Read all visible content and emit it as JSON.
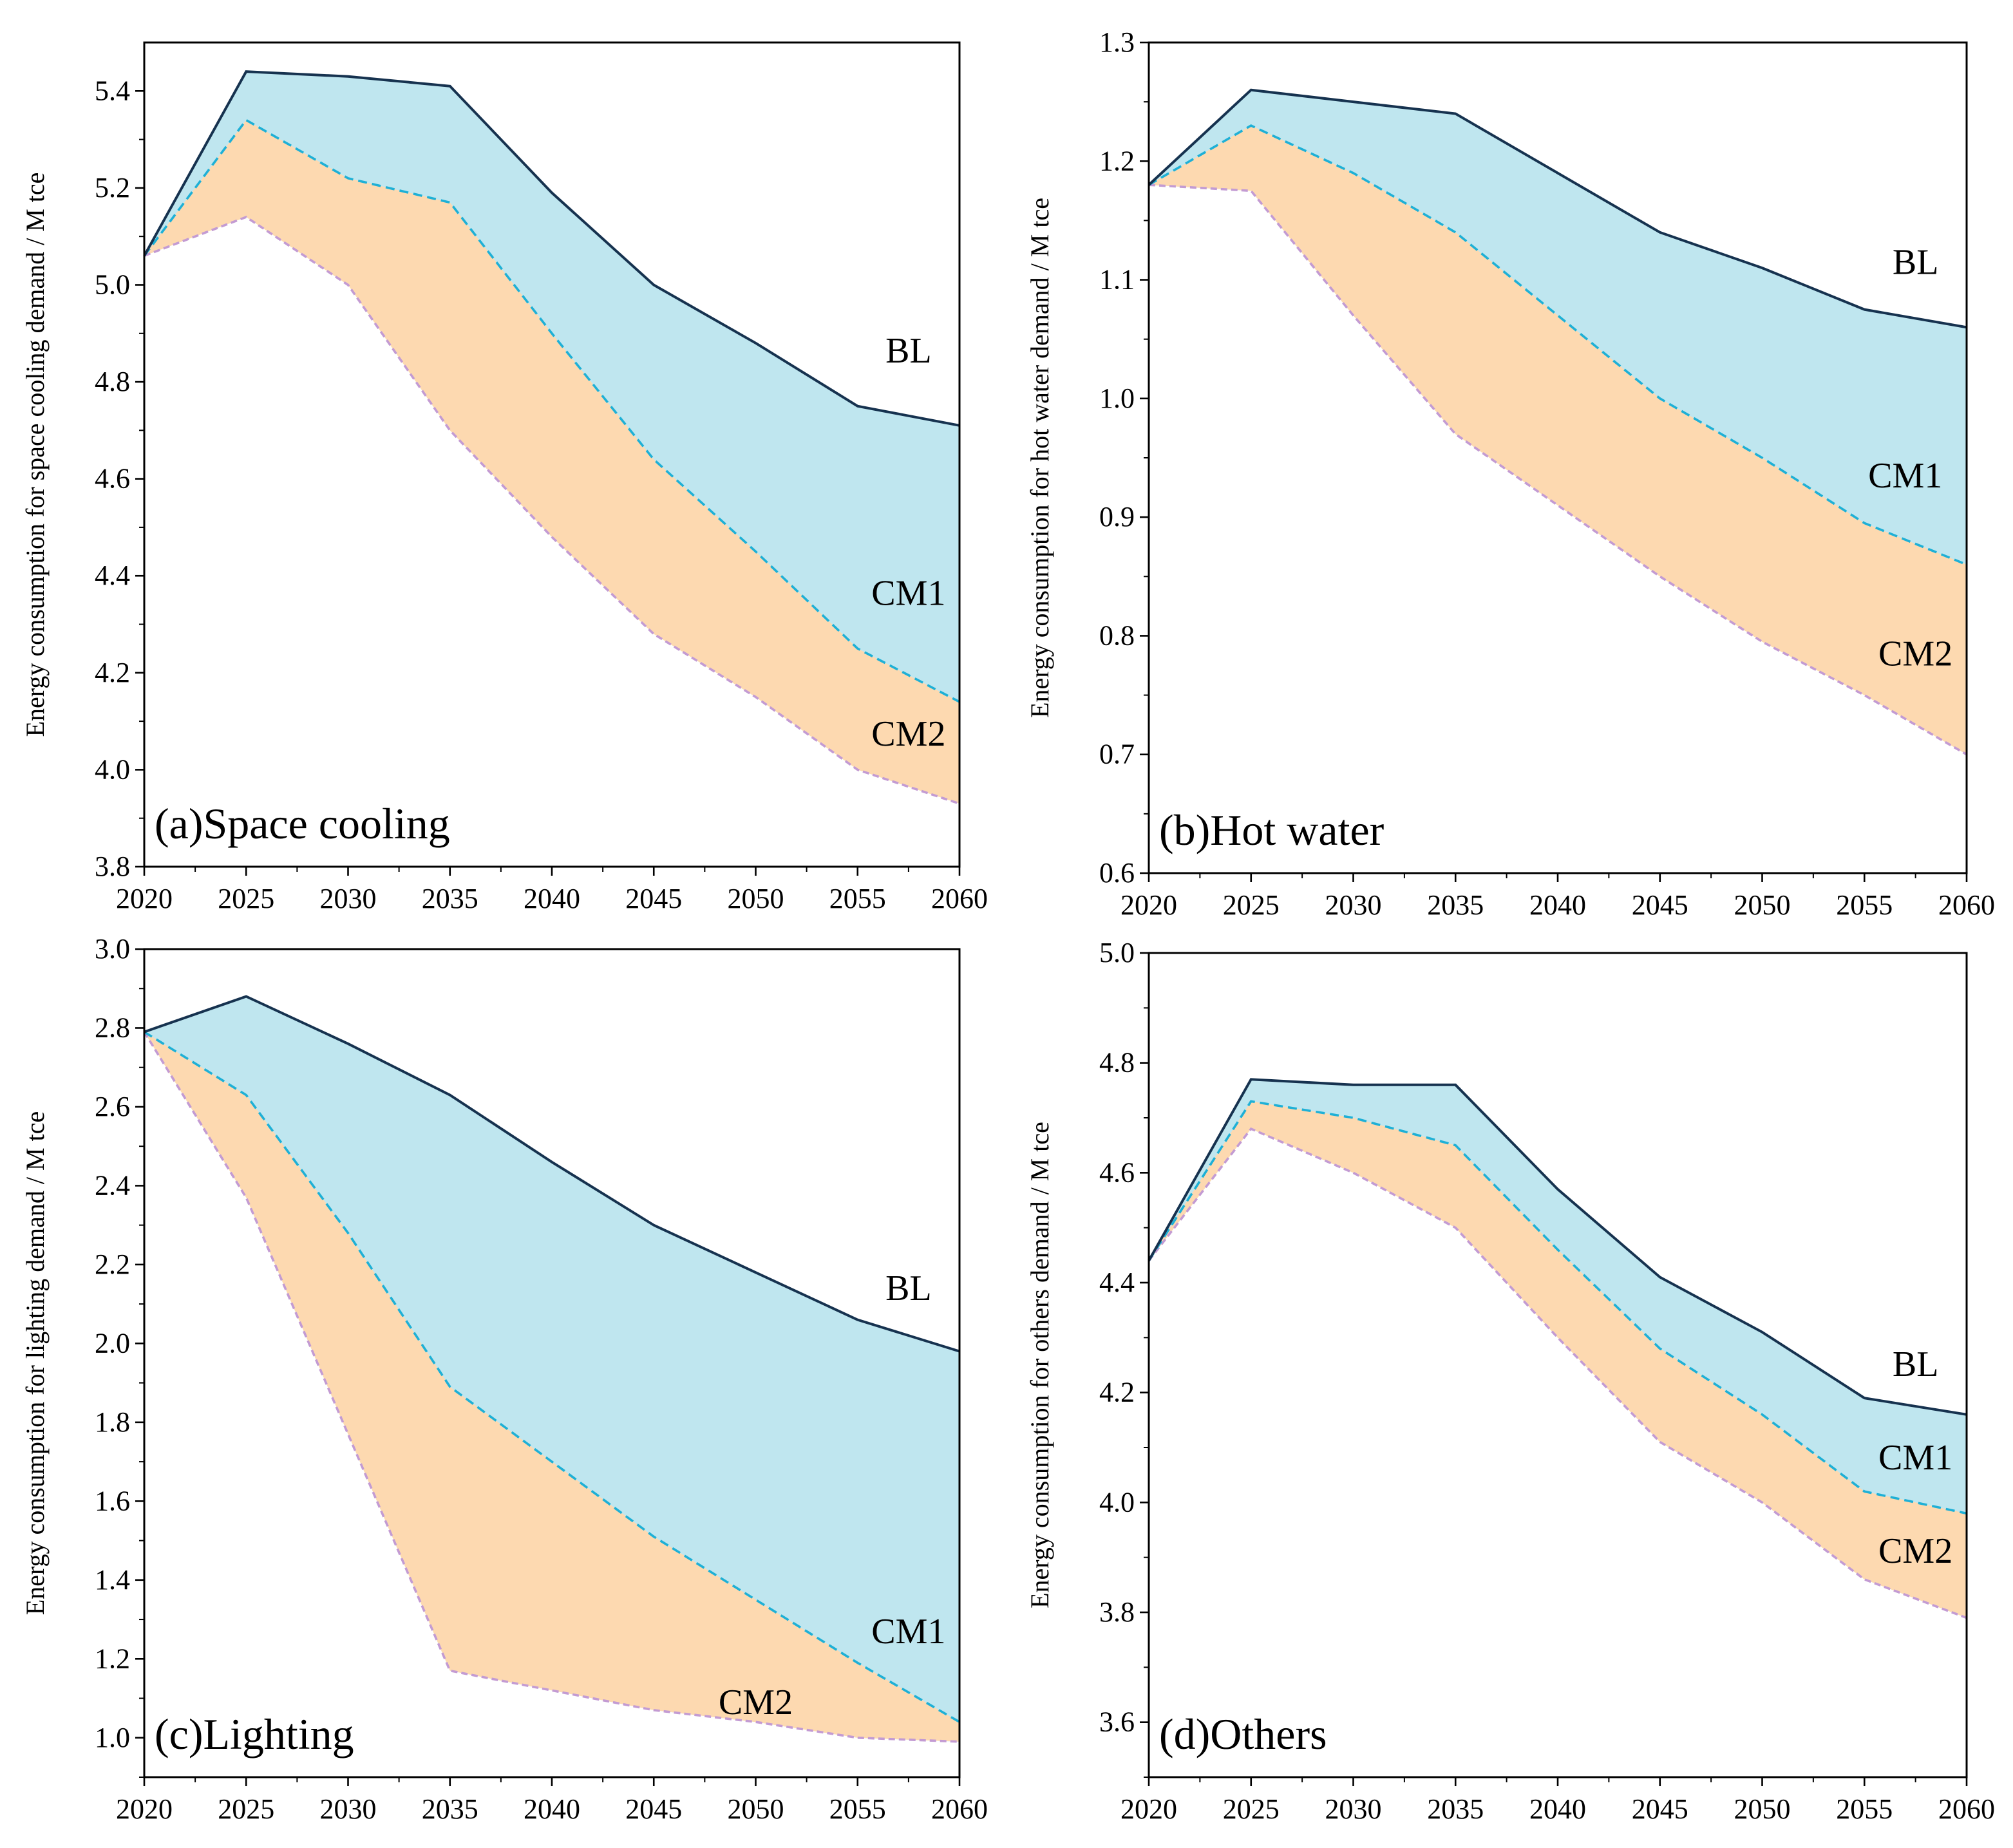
{
  "colors": {
    "bl_line": "#16324f",
    "cm1_line": "#1eb0d6",
    "cm2_line": "#c39bd3",
    "blue_fill": "#bfe6ef",
    "orange_fill": "#fdd9b0"
  },
  "chart_data": [
    {
      "type": "area",
      "panel_title": "(a)Space cooling",
      "ylabel": "Energy consumption for space cooling demand / M tce",
      "x": [
        2020,
        2025,
        2030,
        2035,
        2040,
        2045,
        2050,
        2055,
        2060
      ],
      "xticks": [
        "2020",
        "2025",
        "2030",
        "2035",
        "2040",
        "2045",
        "2050",
        "2055",
        "2060"
      ],
      "ylim": [
        3.8,
        5.5
      ],
      "yticks": [
        "3.8",
        "4.0",
        "4.2",
        "4.4",
        "4.6",
        "4.8",
        "5.0",
        "5.2",
        "5.4"
      ],
      "series": [
        {
          "name": "BL",
          "values": [
            5.06,
            5.44,
            5.43,
            5.41,
            5.19,
            5.0,
            4.88,
            4.75,
            4.71
          ],
          "label_pos": [
            2057.5,
            4.84
          ]
        },
        {
          "name": "CM1",
          "values": [
            5.06,
            5.34,
            5.22,
            5.17,
            4.9,
            4.64,
            4.45,
            4.25,
            4.14
          ],
          "label_pos": [
            2057.5,
            4.34
          ]
        },
        {
          "name": "CM2",
          "values": [
            5.06,
            5.14,
            5.0,
            4.7,
            4.48,
            4.28,
            4.15,
            4.0,
            3.93
          ],
          "label_pos": [
            2057.5,
            4.05
          ]
        }
      ]
    },
    {
      "type": "area",
      "panel_title": "(b)Hot water",
      "ylabel": "Energy consumption for hot water demand / M tce",
      "x": [
        2020,
        2025,
        2030,
        2035,
        2040,
        2045,
        2050,
        2055,
        2060
      ],
      "xticks": [
        "2020",
        "2025",
        "2030",
        "2035",
        "2040",
        "2045",
        "2050",
        "2055",
        "2060"
      ],
      "ylim": [
        0.6,
        1.3
      ],
      "yticks": [
        "0.6",
        "0.7",
        "0.8",
        "0.9",
        "1.0",
        "1.1",
        "1.2",
        "1.3"
      ],
      "series": [
        {
          "name": "BL",
          "values": [
            1.18,
            1.26,
            1.25,
            1.24,
            1.19,
            1.14,
            1.11,
            1.075,
            1.06
          ],
          "label_pos": [
            2057.5,
            1.105
          ]
        },
        {
          "name": "CM1",
          "values": [
            1.18,
            1.23,
            1.19,
            1.14,
            1.07,
            1.0,
            0.95,
            0.895,
            0.86
          ],
          "label_pos": [
            2057,
            0.925
          ]
        },
        {
          "name": "CM2",
          "values": [
            1.18,
            1.175,
            1.07,
            0.97,
            0.91,
            0.85,
            0.795,
            0.75,
            0.7
          ],
          "label_pos": [
            2057.5,
            0.775
          ]
        }
      ]
    },
    {
      "type": "area",
      "panel_title": "(c)Lighting",
      "ylabel": "Energy consumption for lighting demand / M tce",
      "x": [
        2020,
        2025,
        2030,
        2035,
        2040,
        2045,
        2050,
        2055,
        2060
      ],
      "xticks": [
        "2020",
        "2025",
        "2030",
        "2035",
        "2040",
        "2045",
        "2050",
        "2055",
        "2060"
      ],
      "ylim": [
        0.9,
        3.0
      ],
      "yticks": [
        "1.0",
        "1.2",
        "1.4",
        "1.6",
        "1.8",
        "2.0",
        "2.2",
        "2.4",
        "2.6",
        "2.8",
        "3.0"
      ],
      "series": [
        {
          "name": "BL",
          "values": [
            2.79,
            2.88,
            2.76,
            2.63,
            2.46,
            2.3,
            2.18,
            2.06,
            1.98
          ],
          "label_pos": [
            2057.5,
            2.11
          ]
        },
        {
          "name": "CM1",
          "values": [
            2.79,
            2.63,
            2.28,
            1.89,
            1.7,
            1.51,
            1.35,
            1.19,
            1.04
          ],
          "label_pos": [
            2057.5,
            1.24
          ]
        },
        {
          "name": "CM2",
          "values": [
            2.79,
            2.37,
            1.77,
            1.17,
            1.12,
            1.07,
            1.04,
            1.0,
            0.99
          ],
          "label_pos": [
            2050,
            1.06
          ]
        }
      ]
    },
    {
      "type": "area",
      "panel_title": "(d)Others",
      "ylabel": "Energy consumption for others demand / M tce",
      "x": [
        2020,
        2025,
        2030,
        2035,
        2040,
        2045,
        2050,
        2055,
        2060
      ],
      "xticks": [
        "2020",
        "2025",
        "2030",
        "2035",
        "2040",
        "2045",
        "2050",
        "2055",
        "2060"
      ],
      "ylim": [
        3.5,
        5.0
      ],
      "yticks": [
        "3.6",
        "3.8",
        "4.0",
        "4.2",
        "4.4",
        "4.6",
        "4.8",
        "5.0"
      ],
      "series": [
        {
          "name": "BL",
          "values": [
            4.44,
            4.77,
            4.76,
            4.76,
            4.57,
            4.41,
            4.31,
            4.19,
            4.16
          ],
          "label_pos": [
            2057.5,
            4.23
          ]
        },
        {
          "name": "CM1",
          "values": [
            4.44,
            4.73,
            4.7,
            4.65,
            4.46,
            4.28,
            4.16,
            4.02,
            3.98
          ],
          "label_pos": [
            2057.5,
            4.06
          ]
        },
        {
          "name": "CM2",
          "values": [
            4.44,
            4.68,
            4.6,
            4.5,
            4.3,
            4.11,
            4.0,
            3.86,
            3.79
          ],
          "label_pos": [
            2057.5,
            3.89
          ]
        }
      ]
    }
  ]
}
